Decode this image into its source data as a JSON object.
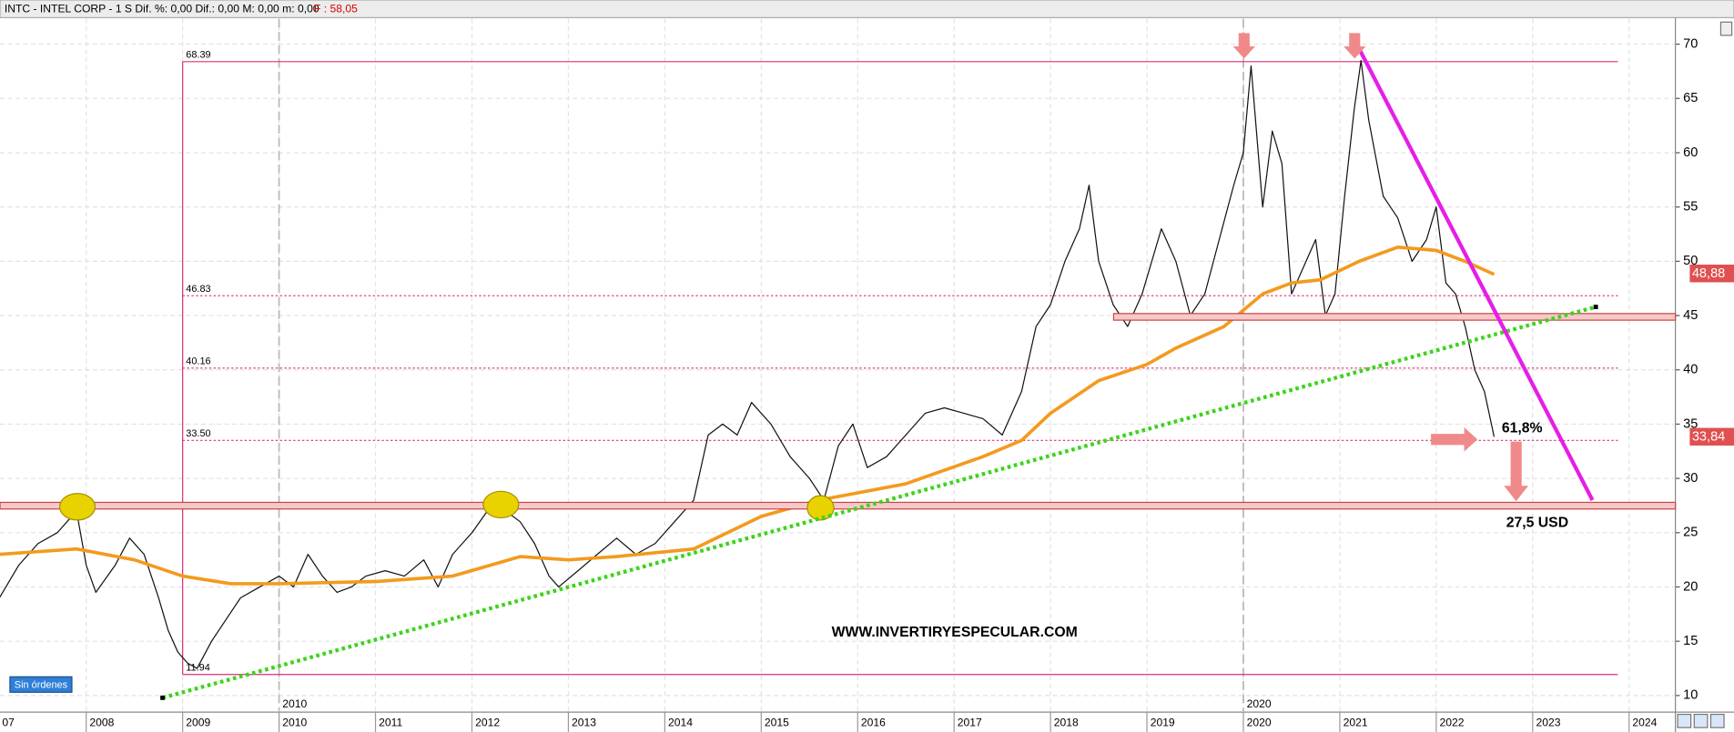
{
  "header": {
    "title": "INTC - INTEL CORP - 1 S  Dif. %: 0,00  Dif.: 0,00  M: 0,00  m: 0,00",
    "last": "F : 58,05"
  },
  "status": "Sin órdenes",
  "watermark": "WWW.INVERTIRYESPECULAR.COM",
  "notes": [
    "61,8%",
    "27,5 USD"
  ],
  "chart_data": {
    "type": "line",
    "xlim": [
      2007.106,
      2024.48
    ],
    "ylim": [
      8.47,
      72.34
    ],
    "xticks": [
      {
        "value": 2007,
        "label": "07"
      },
      2008,
      2009,
      2010,
      2011,
      2012,
      2013,
      2014,
      2015,
      2016,
      2017,
      2018,
      2019,
      2020,
      2021,
      2022,
      2023,
      2024
    ],
    "decade_marks": [
      2010,
      2020
    ],
    "yticks": [
      10,
      15,
      20,
      25,
      30,
      35,
      40,
      45,
      50,
      55,
      60,
      65,
      70
    ],
    "grid": true,
    "fib_start": 2009,
    "fib_levels": [
      68.39,
      46.83,
      40.16,
      {
        "value": 33.5,
        "label": "33.50"
      },
      11.94
    ],
    "price_tags": [
      {
        "value": 48.88,
        "label": "48,88"
      },
      {
        "value": 33.84,
        "label": "33,84"
      }
    ],
    "x": [
      2007.1,
      2007.3,
      2007.5,
      2007.7,
      2007.9,
      2008.0,
      2008.1,
      2008.3,
      2008.45,
      2008.6,
      2008.75,
      2008.85,
      2008.95,
      2009.05,
      2009.15,
      2009.3,
      2009.45,
      2009.6,
      2009.8,
      2010.0,
      2010.15,
      2010.3,
      2010.45,
      2010.6,
      2010.75,
      2010.9,
      2011.1,
      2011.3,
      2011.5,
      2011.65,
      2011.8,
      2012.0,
      2012.2,
      2012.35,
      2012.5,
      2012.65,
      2012.8,
      2012.9,
      2013.1,
      2013.3,
      2013.5,
      2013.7,
      2013.9,
      2014.1,
      2014.3,
      2014.45,
      2014.6,
      2014.75,
      2014.9,
      2015.1,
      2015.3,
      2015.5,
      2015.65,
      2015.8,
      2015.95,
      2016.1,
      2016.3,
      2016.5,
      2016.7,
      2016.9,
      2017.1,
      2017.3,
      2017.5,
      2017.7,
      2017.85,
      2018.0,
      2018.15,
      2018.3,
      2018.4,
      2018.5,
      2018.65,
      2018.8,
      2018.95,
      2019.15,
      2019.3,
      2019.45,
      2019.6,
      2019.75,
      2019.9,
      2020.0,
      2020.08,
      2020.2,
      2020.3,
      2020.4,
      2020.5,
      2020.6,
      2020.75,
      2020.85,
      2020.95,
      2021.05,
      2021.15,
      2021.22,
      2021.3,
      2021.45,
      2021.6,
      2021.75,
      2021.9,
      2022.0,
      2022.1,
      2022.2,
      2022.3,
      2022.4,
      2022.5,
      2022.6
    ],
    "series": [
      {
        "color": "#111111",
        "values": [
          19,
          22,
          24,
          25,
          27,
          22,
          19.5,
          22,
          24.5,
          23,
          19,
          16,
          14,
          13,
          12.5,
          15,
          17,
          19,
          20,
          21,
          20,
          23,
          21,
          19.5,
          20,
          21,
          21.5,
          21,
          22.5,
          20,
          23,
          25,
          27.5,
          27,
          26,
          24,
          21,
          20,
          21.5,
          23,
          24.5,
          23,
          24,
          26,
          28,
          34,
          35,
          34,
          37,
          35,
          32,
          30,
          28,
          33,
          35,
          31,
          32,
          34,
          36,
          36.5,
          36,
          35.5,
          34,
          38,
          44,
          46,
          50,
          53,
          57,
          50,
          46,
          44,
          47,
          53,
          50,
          45,
          47,
          52,
          57,
          60,
          68,
          55,
          62,
          59,
          47,
          49,
          52,
          45,
          47,
          56,
          64,
          68.5,
          63,
          56,
          54,
          50,
          52,
          55,
          48,
          47,
          44,
          40,
          38,
          33.84
        ]
      },
      {
        "color": "#f39a1e",
        "x": [
          2007.1,
          2007.9,
          2008.5,
          2009.0,
          2009.5,
          2010.0,
          2011.0,
          2011.8,
          2012.5,
          2013.0,
          2013.5,
          2014.3,
          2015.0,
          2015.6,
          2016.5,
          2017.3,
          2017.7,
          2018.0,
          2018.5,
          2019.0,
          2019.3,
          2019.8,
          2020.2,
          2020.5,
          2020.8,
          2021.2,
          2021.6,
          2022.0,
          2022.3,
          2022.6
        ],
        "values": [
          23,
          23.5,
          22.5,
          21,
          20.3,
          20.3,
          20.5,
          21,
          22.8,
          22.5,
          22.8,
          23.5,
          26.5,
          28,
          29.5,
          32,
          33.5,
          36,
          39,
          40.5,
          42,
          44,
          47,
          48,
          48.3,
          50,
          51.3,
          51,
          50,
          48.8
        ]
      }
    ]
  }
}
